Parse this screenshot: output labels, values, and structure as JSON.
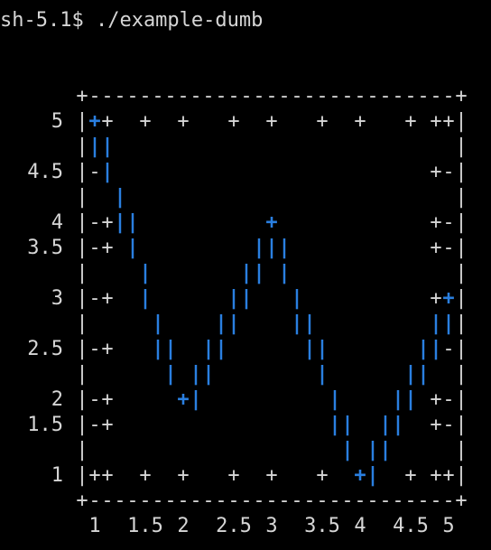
{
  "terminal": {
    "prompt": "sh-5.1$ ./example-dumb",
    "colors": {
      "background": "#000000",
      "text": "#d6d6d6",
      "series": "#2a7fe0"
    },
    "plot": {
      "frame_corner": "+",
      "frame_horizontal": "-",
      "frame_vertical": "|",
      "tick_glyph": "+",
      "mark_glyph": "-",
      "points_glyph": "+",
      "lines_glyph": "|",
      "y_tick_labels": [
        "5",
        "4.5",
        "4",
        "3.5",
        "3",
        "2.5",
        "2",
        "1.5",
        "1"
      ],
      "x_tick_labels": [
        "1",
        "1.5",
        "2",
        "2.5",
        "3",
        "3.5",
        "4",
        "4.5",
        "5"
      ]
    }
  },
  "chart_data": {
    "type": "line",
    "title": "",
    "xlabel": "",
    "ylabel": "",
    "xlim": [
      1,
      5
    ],
    "ylim": [
      1,
      5
    ],
    "x_ticks": [
      1,
      1.5,
      2,
      2.5,
      3,
      3.5,
      4,
      4.5,
      5
    ],
    "y_ticks": [
      1,
      1.5,
      2,
      2.5,
      3,
      3.5,
      4,
      4.5,
      5
    ],
    "grid": false,
    "legend": "none",
    "series": [
      {
        "style": "linespoints",
        "x": [
          1,
          2,
          3,
          4,
          5
        ],
        "y": [
          5,
          2,
          4,
          1,
          3
        ]
      }
    ]
  }
}
